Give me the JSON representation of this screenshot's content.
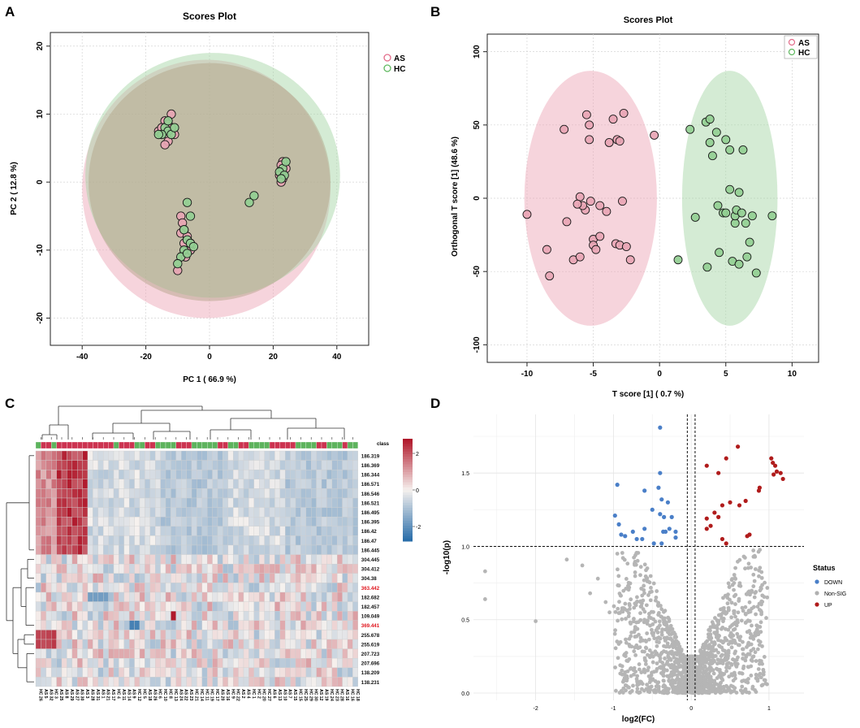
{
  "figure": {
    "panel_labels": [
      "A",
      "B",
      "C",
      "D"
    ]
  },
  "chart_data": [
    {
      "panel": "A",
      "type": "scatter",
      "title": "Scores Plot",
      "xlabel": "PC 1 ( 66.9 %)",
      "ylabel": "PC 2 ( 12.8 %)",
      "xlim": [
        -50,
        50
      ],
      "ylim": [
        -24,
        22
      ],
      "xticks": [
        -40,
        -20,
        0,
        20,
        40
      ],
      "yticks": [
        -20,
        -10,
        0,
        10,
        20
      ],
      "grid": true,
      "legend": {
        "position": "top-right",
        "entries": [
          "AS",
          "HC"
        ]
      },
      "colors": {
        "AS": "#e8a5b4",
        "HC": "#93cf93",
        "AS_edge": "#e36c8a",
        "HC_edge": "#5fb85f"
      },
      "ellipses": [
        {
          "name": "AS",
          "cx": -1,
          "cy": -1,
          "rx": 39,
          "ry": 19
        },
        {
          "name": "HC",
          "cx": 1,
          "cy": 1,
          "rx": 40,
          "ry": 18
        }
      ],
      "series": [
        {
          "name": "AS",
          "points": [
            [
              -12,
              10
            ],
            [
              -14,
              9
            ],
            [
              -13,
              8.5
            ],
            [
              -16,
              7.5
            ],
            [
              -15,
              8
            ],
            [
              -13,
              6
            ],
            [
              -14,
              5.5
            ],
            [
              -12,
              8
            ],
            [
              -11,
              7
            ],
            [
              23,
              3
            ],
            [
              22.5,
              2.5
            ],
            [
              23,
              1.5
            ],
            [
              22,
              1
            ],
            [
              23,
              0.5
            ],
            [
              22.5,
              0
            ],
            [
              24,
              2
            ],
            [
              -9,
              -5
            ],
            [
              -8.5,
              -6
            ],
            [
              -8,
              -7
            ],
            [
              -9,
              -7.5
            ],
            [
              -7,
              -8
            ],
            [
              -8,
              -9
            ],
            [
              -6,
              -10
            ],
            [
              -7.5,
              -11
            ],
            [
              -10,
              -13
            ],
            [
              -6,
              -9
            ]
          ]
        },
        {
          "name": "HC",
          "points": [
            [
              -14,
              8
            ],
            [
              -13,
              7.5
            ],
            [
              -15,
              7
            ],
            [
              -12,
              7
            ],
            [
              -13,
              9
            ],
            [
              -16,
              7
            ],
            [
              -11,
              8
            ],
            [
              23,
              2
            ],
            [
              22,
              1.5
            ],
            [
              24,
              3
            ],
            [
              23.5,
              1
            ],
            [
              22.5,
              0.5
            ],
            [
              12.5,
              -3
            ],
            [
              14,
              -2
            ],
            [
              -7,
              -3
            ],
            [
              -6,
              -5
            ],
            [
              -8,
              -7
            ],
            [
              -7,
              -8.5
            ],
            [
              -6,
              -9
            ],
            [
              -8,
              -10
            ],
            [
              -9,
              -11
            ],
            [
              -10,
              -12
            ],
            [
              -5,
              -9.5
            ],
            [
              -7,
              -10.5
            ]
          ]
        }
      ]
    },
    {
      "panel": "B",
      "type": "scatter",
      "title": "Scores Plot",
      "xlabel": "T score [1] ( 0.7 %)",
      "ylabel": "Orthogonal T score [1] (48.6 %)",
      "xlim": [
        -13,
        12
      ],
      "ylim": [
        -112,
        112
      ],
      "xticks": [
        -10,
        -5,
        0,
        5,
        10
      ],
      "yticks": [
        -100,
        -50,
        0,
        50,
        100
      ],
      "grid": true,
      "legend": {
        "position": "top-right",
        "entries": [
          "AS",
          "HC"
        ]
      },
      "colors": {
        "AS": "#e8a5b4",
        "HC": "#93cf93",
        "AS_edge": "#e36c8a",
        "HC_edge": "#5fb85f"
      },
      "ellipses": [
        {
          "name": "AS",
          "cx": -5.2,
          "cy": 0,
          "rx": 5.0,
          "ry": 87
        },
        {
          "name": "HC",
          "cx": 5.3,
          "cy": 0,
          "rx": 3.6,
          "ry": 87
        }
      ],
      "series": [
        {
          "name": "AS",
          "points": [
            [
              -10,
              -11
            ],
            [
              -8.5,
              -35
            ],
            [
              -8.3,
              -53
            ],
            [
              -7.2,
              47
            ],
            [
              -6.5,
              -42
            ],
            [
              -6,
              -40
            ],
            [
              -6,
              1
            ],
            [
              -5.6,
              -8
            ],
            [
              -5.8,
              -5
            ],
            [
              -5.5,
              57
            ],
            [
              -5.3,
              50
            ],
            [
              -5.2,
              -2
            ],
            [
              -5,
              -28
            ],
            [
              -5,
              -32
            ],
            [
              -4.8,
              -35
            ],
            [
              -4.5,
              -26
            ],
            [
              -4.5,
              -5
            ],
            [
              -3.8,
              38
            ],
            [
              -3.5,
              54
            ],
            [
              -3.3,
              -31
            ],
            [
              -3.2,
              40
            ],
            [
              -3,
              -32
            ],
            [
              -2.8,
              -2
            ],
            [
              -2.7,
              58
            ],
            [
              -2.5,
              -33
            ],
            [
              -2.2,
              -42
            ],
            [
              -0.4,
              43
            ],
            [
              -5.3,
              40
            ],
            [
              -3.0,
              39
            ],
            [
              -6.2,
              -4
            ],
            [
              -7.0,
              -16
            ],
            [
              -4.0,
              -9
            ]
          ]
        },
        {
          "name": "HC",
          "points": [
            [
              1.4,
              -42
            ],
            [
              2.3,
              47
            ],
            [
              2.7,
              -13
            ],
            [
              3.5,
              52
            ],
            [
              3.6,
              -47
            ],
            [
              3.8,
              54
            ],
            [
              3.8,
              38
            ],
            [
              4,
              29
            ],
            [
              4.3,
              45
            ],
            [
              4.4,
              -5
            ],
            [
              4.5,
              -37
            ],
            [
              4.8,
              -10
            ],
            [
              5,
              40
            ],
            [
              5,
              -10
            ],
            [
              5.3,
              6
            ],
            [
              5.3,
              33
            ],
            [
              5.5,
              -43
            ],
            [
              5.7,
              -17
            ],
            [
              5.7,
              -12
            ],
            [
              5.8,
              -8
            ],
            [
              6,
              4
            ],
            [
              6,
              -45
            ],
            [
              6.2,
              -10
            ],
            [
              6.3,
              33
            ],
            [
              6.5,
              -17
            ],
            [
              6.6,
              -40
            ],
            [
              7,
              -12
            ],
            [
              7.3,
              -51
            ],
            [
              8.5,
              -12
            ],
            [
              6.8,
              -30
            ]
          ]
        }
      ]
    },
    {
      "panel": "C",
      "type": "heatmap",
      "row_labels": [
        "186.319",
        "186.369",
        "186.344",
        "186.571",
        "186.546",
        "186.521",
        "186.495",
        "186.395",
        "186.42",
        "186.47",
        "186.445",
        "304.445",
        "304.412",
        "304.38",
        "363.442",
        "182.682",
        "182.457",
        "109.049",
        "369.441",
        "255.678",
        "255.619",
        "207.723",
        "207.696",
        "138.209",
        "138.231"
      ],
      "highlighted_rows": [
        "363.442",
        "369.441"
      ],
      "annotation_row": {
        "label": "class"
      },
      "column_labels": [
        "HC 26",
        "AS 5",
        "AS 32",
        "HC 3",
        "AS 25",
        "AS 8",
        "AS 29",
        "AS 27",
        "AS 30",
        "AS 3",
        "AS 28",
        "AS 31",
        "AS 1",
        "AS 21",
        "AS 17",
        "HC 4",
        "AS 11",
        "AS 14",
        "AS 9",
        "HC 12",
        "HC 5",
        "AS 18",
        "AS 26",
        "HC 6",
        "HC 10",
        "HC 8",
        "HC 13",
        "AS 24",
        "AS 22",
        "AS 23",
        "HC 21",
        "HC 14",
        "HC 11",
        "HC 19",
        "HC 17",
        "AS 20",
        "AS 16",
        "HC 9",
        "HC 22",
        "AS 2",
        "AS 4",
        "HC 1",
        "HC 2",
        "HC 20",
        "HC 27",
        "AS 6",
        "AS 13",
        "AS 10",
        "AS 7",
        "AS 15",
        "HC 15",
        "HC 25",
        "HC 29",
        "HC 30",
        "AS 12",
        "AS 19",
        "HC 24",
        "HC 23",
        "HC 28",
        "AS 16",
        "HC 16",
        "HC 18"
      ],
      "colorbar": {
        "ticks": [
          2,
          0,
          -2
        ],
        "low": "#3a7bb3",
        "mid": "#f5f0ee",
        "high": "#b2182b"
      }
    },
    {
      "panel": "D",
      "type": "scatter",
      "xlabel": "log2(FC)",
      "ylabel": "-log10(p)",
      "xlim": [
        -2.8,
        1.45
      ],
      "ylim": [
        -0.05,
        1.9
      ],
      "xticks": [
        -2,
        -1,
        0,
        1
      ],
      "yticks": [
        0.0,
        0.5,
        1.0,
        1.5
      ],
      "threshold_lines": {
        "x": [
          -0.05,
          0.05
        ],
        "y": 1.0
      },
      "legend": {
        "title": "Status",
        "entries": [
          "DOWN",
          "Non-SIG",
          "UP"
        ],
        "colors": [
          "#4a7fc8",
          "#b0b0b0",
          "#b01c1c"
        ],
        "position": "right"
      },
      "series": [
        {
          "name": "DOWN",
          "points": [
            [
              -0.4,
              1.81
            ],
            [
              -0.95,
              1.42
            ],
            [
              -0.4,
              1.5
            ],
            [
              -0.42,
              1.4
            ],
            [
              -0.6,
              1.38
            ],
            [
              -0.38,
              1.32
            ],
            [
              -0.3,
              1.3
            ],
            [
              -0.5,
              1.25
            ],
            [
              -0.4,
              1.22
            ],
            [
              -0.98,
              1.21
            ],
            [
              -0.35,
              1.2
            ],
            [
              -0.25,
              1.2
            ],
            [
              -0.93,
              1.15
            ],
            [
              -0.75,
              1.1
            ],
            [
              -0.6,
              1.12
            ],
            [
              -0.7,
              1.05
            ],
            [
              -0.36,
              1.1
            ],
            [
              -0.33,
              1.1
            ],
            [
              -0.28,
              1.12
            ],
            [
              -0.2,
              1.06
            ],
            [
              -0.63,
              1.05
            ],
            [
              -0.85,
              1.07
            ],
            [
              -0.2,
              1.1
            ],
            [
              -0.9,
              1.08
            ],
            [
              -0.48,
              1.02
            ],
            [
              -0.38,
              1.02
            ]
          ]
        },
        {
          "name": "UP",
          "points": [
            [
              0.6,
              1.68
            ],
            [
              0.45,
              1.6
            ],
            [
              1.03,
              1.6
            ],
            [
              1.05,
              1.57
            ],
            [
              1.08,
              1.55
            ],
            [
              1.1,
              1.51
            ],
            [
              1.06,
              1.49
            ],
            [
              1.15,
              1.5
            ],
            [
              1.18,
              1.46
            ],
            [
              0.2,
              1.55
            ],
            [
              0.35,
              1.5
            ],
            [
              0.87,
              1.38
            ],
            [
              0.88,
              1.4
            ],
            [
              0.7,
              1.31
            ],
            [
              0.5,
              1.3
            ],
            [
              0.62,
              1.28
            ],
            [
              0.4,
              1.28
            ],
            [
              0.35,
              1.2
            ],
            [
              0.3,
              1.23
            ],
            [
              0.2,
              1.19
            ],
            [
              0.25,
              1.14
            ],
            [
              0.2,
              1.12
            ],
            [
              0.4,
              1.05
            ],
            [
              0.45,
              1.02
            ],
            [
              0.72,
              1.07
            ],
            [
              0.75,
              1.08
            ]
          ]
        }
      ]
    }
  ]
}
